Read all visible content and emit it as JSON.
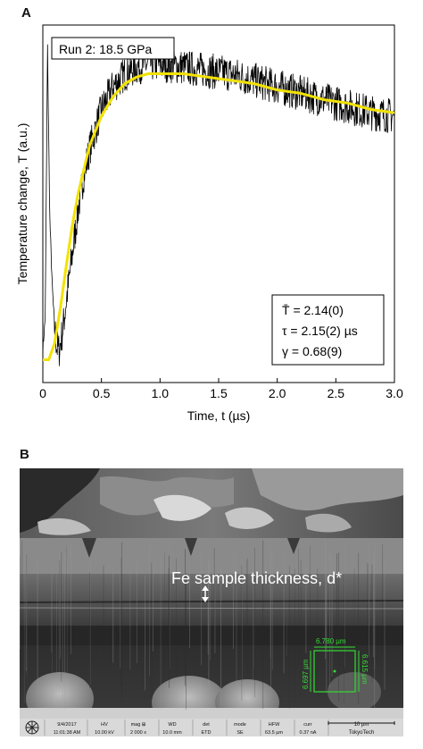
{
  "panel_a_label": "A",
  "panel_b_label": "B",
  "chart_data": {
    "type": "line",
    "title": "Run 2: 18.5 GPa",
    "xlabel": "Time, t (µs)",
    "ylabel": "Temperature change, T (a.u.)",
    "xlim": [
      0,
      3.0
    ],
    "xticks": [
      "0",
      "0.5",
      "1.0",
      "1.5",
      "2.0",
      "2.5",
      "3.0"
    ],
    "grid": false,
    "annotations": [
      "T̄ = 2.14(0)",
      "τ = 2.15(2) µs",
      "γ = 0.68(9)"
    ],
    "series": [
      {
        "kind": "measured",
        "color": "#000000",
        "x": [
          0.0,
          0.02,
          0.03,
          0.04,
          0.05,
          0.06,
          0.08,
          0.1,
          0.12,
          0.14,
          0.16,
          0.18,
          0.2,
          0.25,
          0.3,
          0.35,
          0.4,
          0.5,
          0.6,
          0.7,
          0.8,
          0.9,
          1.0,
          1.2,
          1.4,
          1.6,
          1.8,
          2.0,
          2.2,
          2.4,
          2.6,
          2.8,
          3.0
        ],
        "y": [
          0.05,
          0.15,
          0.55,
          0.98,
          0.7,
          0.45,
          0.25,
          0.12,
          0.06,
          0.05,
          0.09,
          0.14,
          0.2,
          0.34,
          0.48,
          0.59,
          0.67,
          0.79,
          0.86,
          0.9,
          0.92,
          0.93,
          0.93,
          0.92,
          0.91,
          0.9,
          0.88,
          0.86,
          0.84,
          0.82,
          0.8,
          0.78,
          0.77
        ]
      },
      {
        "kind": "fit",
        "color": "#f2e200",
        "x": [
          0.0,
          0.05,
          0.1,
          0.15,
          0.2,
          0.25,
          0.3,
          0.4,
          0.5,
          0.6,
          0.7,
          0.8,
          0.9,
          1.0,
          1.2,
          1.4,
          1.6,
          1.8,
          2.0,
          2.2,
          2.4,
          2.6,
          2.8,
          3.0
        ],
        "y": [
          0.02,
          0.02,
          0.07,
          0.18,
          0.31,
          0.43,
          0.53,
          0.68,
          0.77,
          0.83,
          0.87,
          0.89,
          0.9,
          0.9,
          0.9,
          0.89,
          0.88,
          0.87,
          0.85,
          0.84,
          0.82,
          0.81,
          0.79,
          0.78
        ]
      }
    ]
  },
  "sem": {
    "annotation": "Fe sample thickness, d*",
    "box_width_label": "6.780 µm",
    "box_height_left_label": "6.697 µm",
    "box_height_right_label": "6.615 µm",
    "colors": {
      "measure": "#33dd33"
    },
    "info_bar": [
      {
        "head": "9/4/2017",
        "value": "11:01:38 AM"
      },
      {
        "head": "HV",
        "value": "10.00 kV"
      },
      {
        "head": "mag ⊞",
        "value": "2 000 x"
      },
      {
        "head": "WD",
        "value": "10.0 mm"
      },
      {
        "head": "det",
        "value": "ETD"
      },
      {
        "head": "mode",
        "value": "SE"
      },
      {
        "head": "HFW",
        "value": "63.5 µm"
      },
      {
        "head": "curr",
        "value": "0.37 nA"
      }
    ],
    "scale_bar_label": "10 µm",
    "institution": "TokyoTech"
  }
}
